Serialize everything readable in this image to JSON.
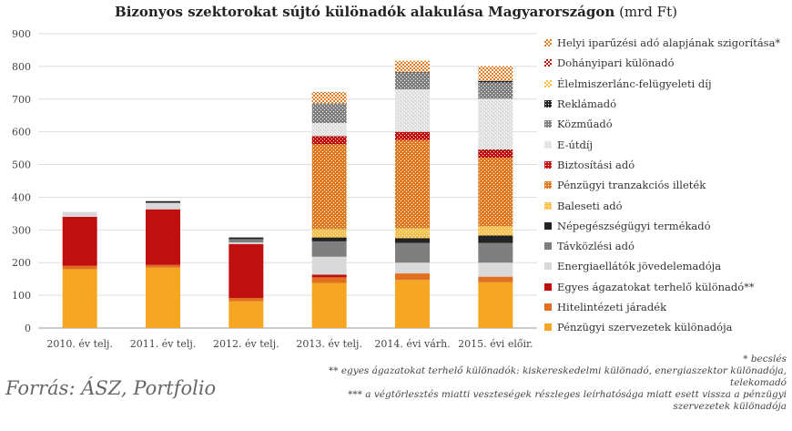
{
  "chart_data": {
    "type": "bar",
    "stacked": true,
    "title": "Bizonyos szektorokat sújtó különadók alakulása Magyarországon",
    "title_unit": "(mrd Ft)",
    "ylim": [
      0,
      900
    ],
    "yticks": [
      0,
      100,
      200,
      300,
      400,
      500,
      600,
      700,
      800,
      900
    ],
    "grid": true,
    "legend_position": "right",
    "categories": [
      "2010. év telj.",
      "2011. év telj.",
      "2012. év telj.",
      "2013. év telj.",
      "2014. évi várh.",
      "2015. évi előir."
    ],
    "series": [
      {
        "name": "Pénzügyi szervezetek különadója",
        "color": "#f5a623",
        "pattern": "solid",
        "values": [
          180,
          185,
          82,
          138,
          147,
          140
        ]
      },
      {
        "name": "Hitelintézeti járadék",
        "color": "#e07020",
        "pattern": "solid",
        "values": [
          10,
          8,
          10,
          17,
          20,
          17
        ]
      },
      {
        "name": "Egyes ágazatokat terhelő különadó**",
        "color": "#c00f0f",
        "pattern": "solid",
        "values": [
          150,
          170,
          165,
          8,
          0,
          0
        ]
      },
      {
        "name": "Energiaellátók jövedelemadója",
        "color": "#d9d9d9",
        "pattern": "solid",
        "values": [
          15,
          20,
          5,
          55,
          33,
          43
        ]
      },
      {
        "name": "Távközlési adó",
        "color": "#7f7f7f",
        "pattern": "solid",
        "values": [
          0,
          0,
          10,
          47,
          60,
          60
        ]
      },
      {
        "name": "Népegészségügyi termékadó",
        "color": "#222222",
        "pattern": "solid",
        "values": [
          0,
          5,
          5,
          12,
          15,
          23
        ]
      },
      {
        "name": "Baleseti adó",
        "color": "#f6c04b",
        "pattern": "dots",
        "values": [
          0,
          0,
          0,
          25,
          30,
          28
        ]
      },
      {
        "name": "Pénzügyi tranzakciós illeték",
        "color": "#e07a20",
        "pattern": "dots",
        "values": [
          0,
          0,
          0,
          260,
          270,
          210
        ]
      },
      {
        "name": "Biztosítási adó",
        "color": "#c00f0f",
        "pattern": "dots",
        "values": [
          0,
          0,
          0,
          25,
          25,
          25
        ]
      },
      {
        "name": "E-útdíj",
        "color": "#e0e0e0",
        "pattern": "dots",
        "values": [
          0,
          0,
          0,
          40,
          130,
          155
        ]
      },
      {
        "name": "Közműadó",
        "color": "#808080",
        "pattern": "dots",
        "values": [
          0,
          0,
          0,
          60,
          50,
          50
        ]
      },
      {
        "name": "Reklámadó",
        "color": "#222222",
        "pattern": "dots",
        "values": [
          0,
          0,
          0,
          0,
          2,
          5
        ]
      },
      {
        "name": "Élelmiszerlánc-felügyeleti díj",
        "color": "#f6c04b",
        "pattern": "sparse",
        "values": [
          0,
          0,
          0,
          0,
          0,
          0
        ]
      },
      {
        "name": "Dohányipari különadó",
        "color": "#c00f0f",
        "pattern": "sparse",
        "values": [
          0,
          0,
          0,
          0,
          0,
          0
        ]
      },
      {
        "name": "Helyi iparűzési adó alapjának szigorítása*",
        "color": "#e07a20",
        "pattern": "sparse",
        "values": [
          0,
          0,
          0,
          35,
          35,
          45
        ]
      }
    ]
  },
  "source": "Forrás: ÁSZ, Portfolio",
  "notes": [
    "* becslés",
    "** egyes ágazatokat terhelő különadók: kiskereskedelmi különadó, energiaszektor különadója, telekomadó",
    "*** a végtörlesztés miatti veszteségek részleges leírhatósága miatt esett vissza a pénzügyi szervezetek különadója"
  ]
}
